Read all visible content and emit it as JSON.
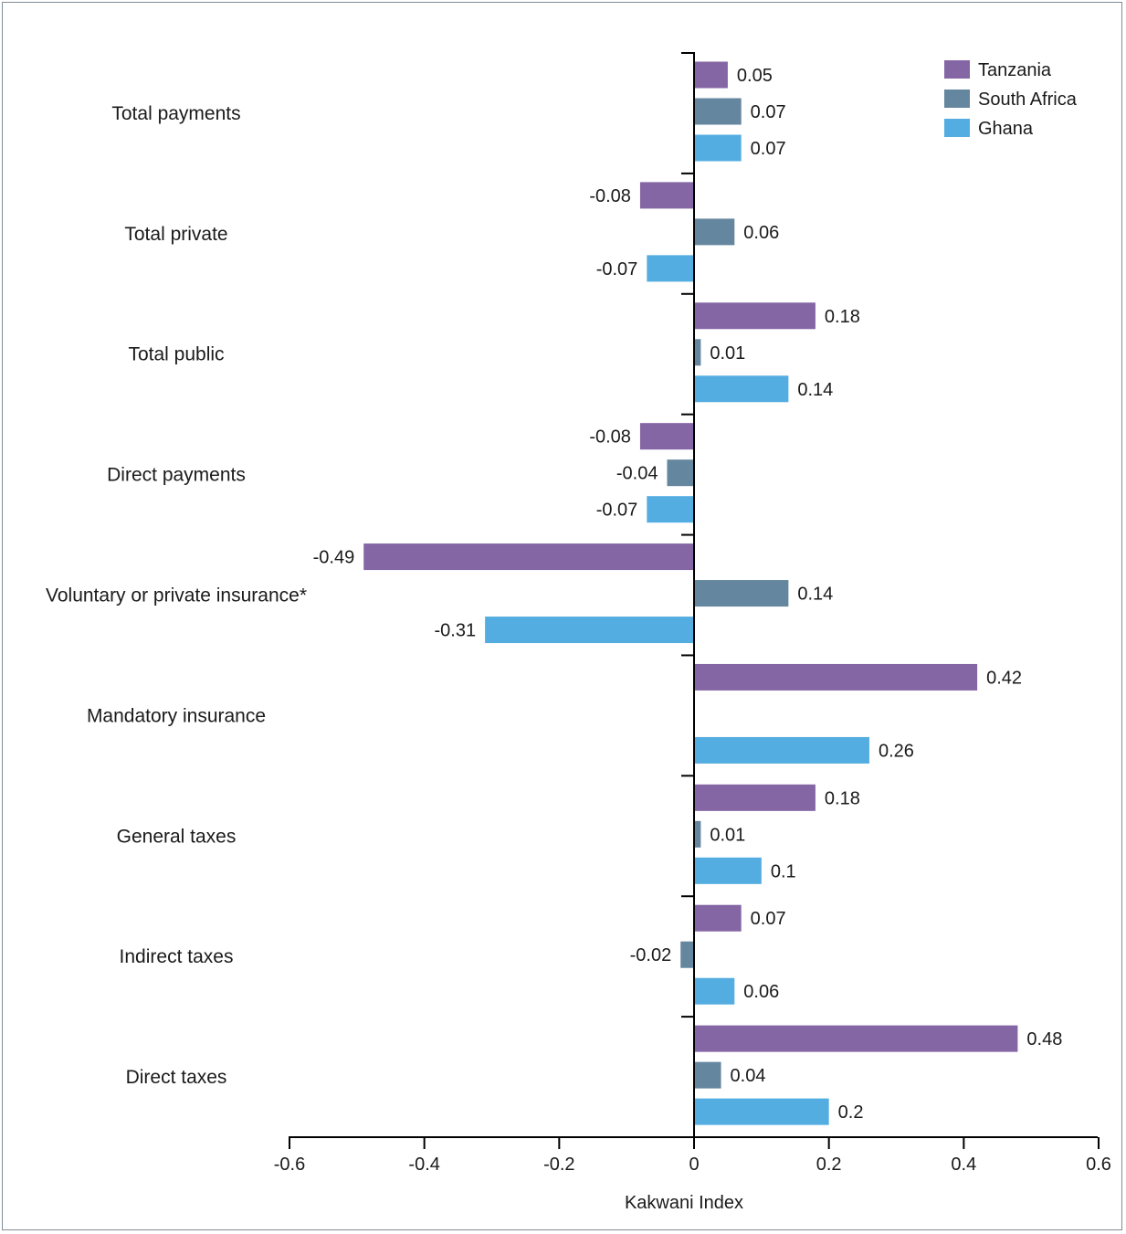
{
  "chart_data": {
    "type": "bar",
    "orientation": "horizontal",
    "categories": [
      "Total payments",
      "Total private",
      "Total public",
      "Direct payments",
      "Voluntary or private insurance*",
      "Mandatory insurance",
      "General taxes",
      "Indirect taxes",
      "Direct taxes"
    ],
    "series": [
      {
        "name": "Tanzania",
        "color": "#8466a4",
        "values": [
          0.05,
          -0.08,
          0.18,
          -0.08,
          -0.49,
          0.42,
          0.18,
          0.07,
          0.48
        ]
      },
      {
        "name": "South Africa",
        "color": "#64869e",
        "values": [
          0.07,
          0.06,
          0.01,
          -0.04,
          0.14,
          null,
          0.01,
          -0.02,
          0.04
        ]
      },
      {
        "name": "Ghana",
        "color": "#54ade1",
        "values": [
          0.07,
          -0.07,
          0.14,
          -0.07,
          -0.31,
          0.26,
          0.1,
          0.06,
          0.2
        ]
      }
    ],
    "data_labels": [
      [
        "0.05",
        "0.07",
        "0.07"
      ],
      [
        "-0.08",
        "0.06",
        "-0.07"
      ],
      [
        "0.18",
        "0.01",
        "0.14"
      ],
      [
        "-0.08",
        "-0.04",
        "-0.07"
      ],
      [
        "-0.49",
        "0.14",
        "-0.31"
      ],
      [
        "0.42",
        "",
        "0.26"
      ],
      [
        "0.18",
        "0.01",
        "0.1"
      ],
      [
        "0.07",
        "-0.02",
        "0.06"
      ],
      [
        "0.48",
        "0.04",
        "0.2"
      ]
    ],
    "xlabel": "Kakwani Index",
    "ylabel": "",
    "xlim": [
      -0.6,
      0.6
    ],
    "xticks": [
      -0.6,
      -0.4,
      -0.2,
      0,
      0.2,
      0.4,
      0.6
    ],
    "xtick_labels": [
      "-0.6",
      "-0.4",
      "-0.2",
      "0",
      "0.2",
      "0.4",
      "0.6"
    ],
    "grid": false,
    "legend_position": "top-right"
  }
}
